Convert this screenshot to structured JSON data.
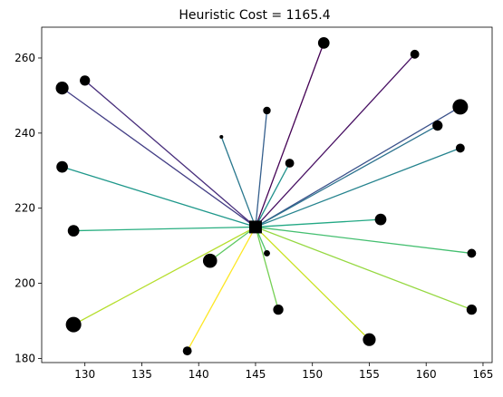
{
  "chart_data": {
    "type": "scatter",
    "title": "Heuristic Cost = 1165.4",
    "xlabel": "",
    "ylabel": "",
    "xlim": [
      126.2,
      165.8
    ],
    "ylim": [
      178.9,
      268.2
    ],
    "xticks": [
      130,
      135,
      140,
      145,
      150,
      155,
      160,
      165
    ],
    "yticks": [
      180,
      200,
      220,
      240,
      260
    ],
    "grid": false,
    "depot": {
      "x": 145,
      "y": 215,
      "marker": "square",
      "color": "#000000"
    },
    "points": [
      {
        "x": 151,
        "y": 264,
        "size": 8,
        "edge_color": "#440154"
      },
      {
        "x": 159,
        "y": 261,
        "size": 6,
        "edge_color": "#470f62"
      },
      {
        "x": 130,
        "y": 254,
        "size": 7,
        "edge_color": "#472d7b"
      },
      {
        "x": 128,
        "y": 252,
        "size": 9,
        "edge_color": "#433e85"
      },
      {
        "x": 163,
        "y": 247,
        "size": 11,
        "edge_color": "#3b528b"
      },
      {
        "x": 146,
        "y": 246,
        "size": 5,
        "edge_color": "#355f8d"
      },
      {
        "x": 161,
        "y": 242,
        "size": 7,
        "edge_color": "#2c728e"
      },
      {
        "x": 142,
        "y": 239,
        "size": 2,
        "edge_color": "#2a788e"
      },
      {
        "x": 163,
        "y": 236,
        "size": 6,
        "edge_color": "#25838e"
      },
      {
        "x": 148,
        "y": 232,
        "size": 6,
        "edge_color": "#21918c"
      },
      {
        "x": 128,
        "y": 231,
        "size": 8,
        "edge_color": "#1f988b"
      },
      {
        "x": 156,
        "y": 217,
        "size": 8,
        "edge_color": "#22a884"
      },
      {
        "x": 129,
        "y": 214,
        "size": 8,
        "edge_color": "#28ae80"
      },
      {
        "x": 164,
        "y": 208,
        "size": 6,
        "edge_color": "#44bf70"
      },
      {
        "x": 146,
        "y": 208,
        "size": 4,
        "edge_color": "#4ec36b"
      },
      {
        "x": 141,
        "y": 206,
        "size": 10,
        "edge_color": "#5ec962"
      },
      {
        "x": 147,
        "y": 193,
        "size": 7,
        "edge_color": "#75d054"
      },
      {
        "x": 164,
        "y": 193,
        "size": 7,
        "edge_color": "#95d840"
      },
      {
        "x": 129,
        "y": 189,
        "size": 11,
        "edge_color": "#b5de2b"
      },
      {
        "x": 155,
        "y": 185,
        "size": 9,
        "edge_color": "#cae11f"
      },
      {
        "x": 139,
        "y": 182,
        "size": 6,
        "edge_color": "#fde725"
      }
    ]
  }
}
